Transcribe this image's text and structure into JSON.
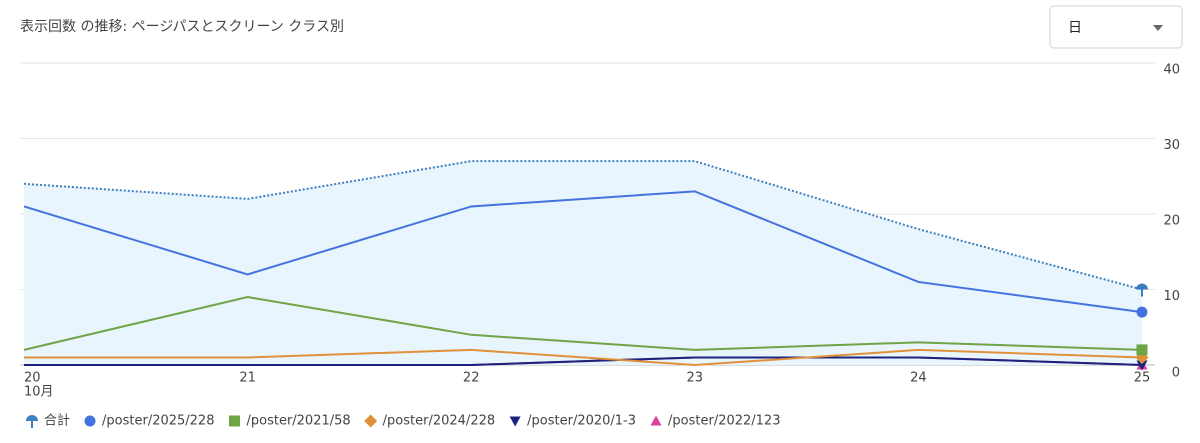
{
  "chart_data": {
    "type": "line",
    "title": "表示回数 の推移: ページパスとスクリーン クラス別",
    "dropdown": "日",
    "categories": [
      "20",
      "21",
      "22",
      "23",
      "24",
      "25"
    ],
    "x_sublabel": "10月",
    "series": [
      {
        "name": "合計",
        "color": "#3b7fc0",
        "marker": "pin",
        "dotted": true,
        "area": true,
        "values": [
          24,
          22,
          27,
          27,
          18,
          10
        ]
      },
      {
        "name": "/poster/2025/228",
        "color": "#4473e0",
        "marker": "circle",
        "values": [
          21,
          12,
          21,
          23,
          11,
          7
        ]
      },
      {
        "name": "/poster/2021/58",
        "color": "#6fa447",
        "marker": "square",
        "values": [
          2,
          9,
          4,
          2,
          3,
          2
        ]
      },
      {
        "name": "/poster/2024/228",
        "color": "#e0913a",
        "marker": "diamond",
        "values": [
          1,
          1,
          2,
          0,
          2,
          1
        ]
      },
      {
        "name": "/poster/2020/1-3",
        "color": "#1a237e",
        "marker": "triangle-down",
        "values": [
          0,
          0,
          0,
          1,
          1,
          0
        ]
      },
      {
        "name": "/poster/2022/123",
        "color": "#e0409a",
        "marker": "triangle-up",
        "values": [
          0,
          0,
          0,
          1,
          1,
          0
        ]
      }
    ],
    "ylim": [
      0,
      40
    ],
    "yticks": [
      0,
      10,
      20,
      30,
      40
    ],
    "grid": true
  }
}
